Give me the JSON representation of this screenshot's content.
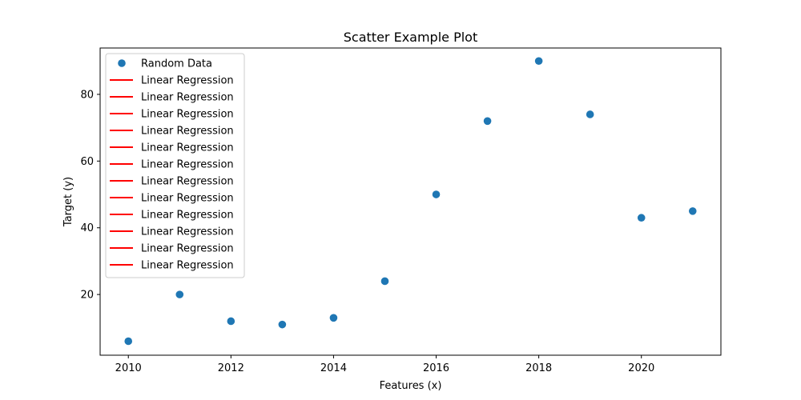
{
  "chart_data": {
    "type": "scatter",
    "title": "Scatter Example Plot",
    "xlabel": "Features (x)",
    "ylabel": "Target (y)",
    "xlim": [
      2009.45,
      2021.55
    ],
    "ylim": [
      1.8,
      93.9
    ],
    "x_ticks": [
      2010,
      2012,
      2014,
      2016,
      2018,
      2020
    ],
    "y_ticks": [
      20,
      40,
      60,
      80
    ],
    "grid": false,
    "legend_position": "top-left",
    "series": [
      {
        "name": "Random Data",
        "kind": "scatter",
        "color": "#1f77b4",
        "x": [
          2010,
          2011,
          2012,
          2013,
          2014,
          2015,
          2016,
          2017,
          2018,
          2019,
          2020,
          2021
        ],
        "y": [
          6,
          20,
          12,
          11,
          13,
          24,
          50,
          72,
          90,
          74,
          43,
          45
        ]
      }
    ],
    "legend": [
      {
        "label": "Random Data",
        "kind": "marker",
        "color": "#1f77b4"
      },
      {
        "label": "Linear Regression",
        "kind": "line",
        "color": "#ff0000"
      },
      {
        "label": "Linear Regression",
        "kind": "line",
        "color": "#ff0000"
      },
      {
        "label": "Linear Regression",
        "kind": "line",
        "color": "#ff0000"
      },
      {
        "label": "Linear Regression",
        "kind": "line",
        "color": "#ff0000"
      },
      {
        "label": "Linear Regression",
        "kind": "line",
        "color": "#ff0000"
      },
      {
        "label": "Linear Regression",
        "kind": "line",
        "color": "#ff0000"
      },
      {
        "label": "Linear Regression",
        "kind": "line",
        "color": "#ff0000"
      },
      {
        "label": "Linear Regression",
        "kind": "line",
        "color": "#ff0000"
      },
      {
        "label": "Linear Regression",
        "kind": "line",
        "color": "#ff0000"
      },
      {
        "label": "Linear Regression",
        "kind": "line",
        "color": "#ff0000"
      },
      {
        "label": "Linear Regression",
        "kind": "line",
        "color": "#ff0000"
      },
      {
        "label": "Linear Regression",
        "kind": "line",
        "color": "#ff0000"
      }
    ]
  }
}
